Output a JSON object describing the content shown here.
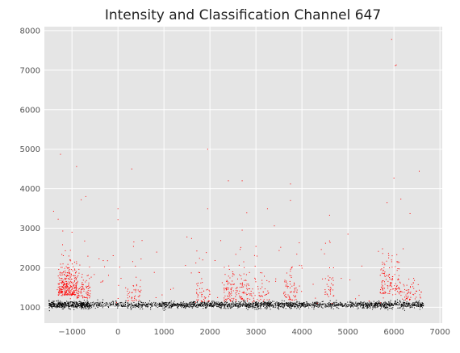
{
  "chart_data": {
    "type": "scatter",
    "title": "Intensity and Classification Channel 647",
    "xlabel": "",
    "ylabel": "",
    "xlim": [
      -1600,
      7050
    ],
    "ylim": [
      600,
      8100
    ],
    "x_ticks": [
      -1000,
      0,
      1000,
      2000,
      3000,
      4000,
      5000,
      6000,
      7000
    ],
    "y_ticks": [
      1000,
      2000,
      3000,
      4000,
      5000,
      6000,
      7000,
      8000
    ],
    "grid": true,
    "background_color": "#e5e5e5",
    "grid_color": "#ffffff",
    "series": [
      {
        "color": "#000000",
        "point_count": 2400,
        "x_range": [
          -1500,
          6650
        ],
        "baseline": 1060,
        "spread": 70,
        "sample_points": [
          [
            -1450,
            1070
          ],
          [
            -1200,
            1090
          ],
          [
            -1000,
            1050
          ],
          [
            -800,
            1080
          ],
          [
            -600,
            1040
          ],
          [
            0,
            1060
          ],
          [
            300,
            1050
          ],
          [
            600,
            1040
          ],
          [
            1200,
            1070
          ],
          [
            1600,
            1080
          ],
          [
            2000,
            1040
          ],
          [
            2400,
            1060
          ],
          [
            2800,
            1050
          ],
          [
            3200,
            1000
          ],
          [
            3600,
            1060
          ],
          [
            4000,
            1070
          ],
          [
            4400,
            1080
          ],
          [
            4800,
            1050
          ],
          [
            5200,
            1060
          ],
          [
            5600,
            1070
          ],
          [
            6000,
            1080
          ],
          [
            6400,
            1000
          ],
          [
            6600,
            1050
          ]
        ]
      },
      {
        "color": "#ff0000",
        "point_count": 900,
        "sample_points": [
          [
            -1250,
            4870
          ],
          [
            -900,
            4560
          ],
          [
            300,
            4500
          ],
          [
            1950,
            5000
          ],
          [
            2400,
            4200
          ],
          [
            2700,
            4200
          ],
          [
            3750,
            4120
          ],
          [
            5950,
            7780
          ],
          [
            6050,
            7130
          ],
          [
            6030,
            7110
          ],
          [
            6000,
            4270
          ],
          [
            6550,
            4440
          ],
          [
            -1400,
            3430
          ],
          [
            -1300,
            3230
          ],
          [
            -700,
            3800
          ],
          [
            -800,
            3720
          ],
          [
            0,
            3490
          ],
          [
            0,
            3220
          ],
          [
            1950,
            3490
          ],
          [
            2800,
            3390
          ],
          [
            3250,
            3490
          ],
          [
            3750,
            3700
          ],
          [
            4600,
            3330
          ],
          [
            5850,
            3650
          ],
          [
            6150,
            3740
          ],
          [
            6350,
            3370
          ],
          [
            -1200,
            2930
          ],
          [
            -1000,
            2900
          ],
          [
            1500,
            2780
          ],
          [
            1600,
            2740
          ],
          [
            2700,
            2950
          ],
          [
            3000,
            2540
          ],
          [
            3400,
            3060
          ],
          [
            4600,
            2680
          ],
          [
            5000,
            2850
          ],
          [
            5750,
            2480
          ],
          [
            6200,
            2480
          ]
        ]
      }
    ]
  }
}
